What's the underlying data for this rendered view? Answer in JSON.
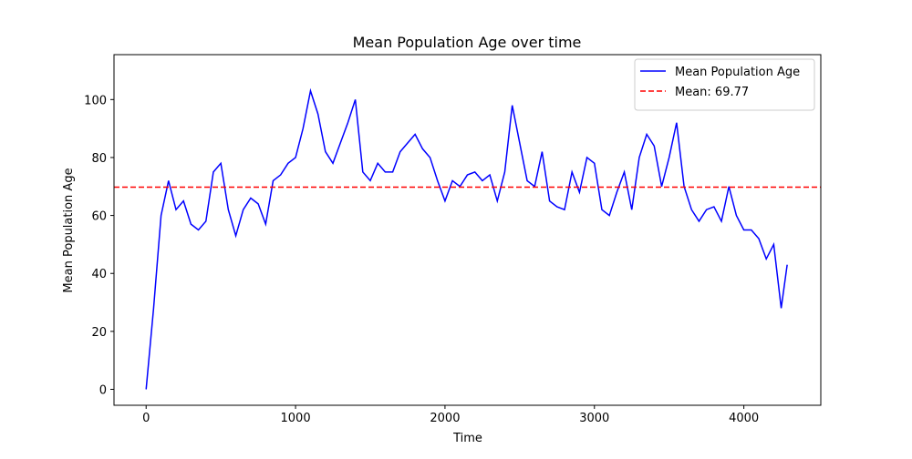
{
  "chart_data": {
    "type": "line",
    "title": "Mean Population Age over time",
    "xlabel": "Time",
    "ylabel": "Mean Population Age",
    "x": [
      0,
      50,
      100,
      150,
      200,
      250,
      300,
      350,
      400,
      450,
      500,
      550,
      600,
      650,
      700,
      750,
      800,
      850,
      900,
      950,
      1000,
      1050,
      1100,
      1150,
      1200,
      1250,
      1300,
      1350,
      1400,
      1450,
      1500,
      1550,
      1600,
      1650,
      1700,
      1750,
      1800,
      1850,
      1900,
      1950,
      2000,
      2050,
      2100,
      2150,
      2200,
      2250,
      2300,
      2350,
      2400,
      2450,
      2500,
      2550,
      2600,
      2650,
      2700,
      2750,
      2800,
      2850,
      2900,
      2950,
      3000,
      3050,
      3100,
      3150,
      3200,
      3250,
      3300,
      3350,
      3400,
      3450,
      3500,
      3550,
      3600,
      3650,
      3700,
      3750,
      3800,
      3850,
      3900,
      3950,
      4000,
      4050,
      4100,
      4150,
      4200,
      4250,
      4290
    ],
    "series": [
      {
        "name": "Mean Population Age",
        "color": "#0000ff",
        "values": [
          0,
          28,
          60,
          72,
          62,
          65,
          57,
          55,
          58,
          75,
          78,
          62,
          53,
          62,
          66,
          64,
          57,
          72,
          74,
          78,
          80,
          90,
          103,
          95,
          82,
          78,
          85,
          92,
          100,
          75,
          72,
          78,
          75,
          75,
          82,
          85,
          88,
          83,
          80,
          72,
          65,
          72,
          70,
          74,
          75,
          72,
          74,
          65,
          75,
          98,
          85,
          72,
          70,
          82,
          65,
          63,
          62,
          75,
          68,
          80,
          78,
          62,
          60,
          68,
          75,
          62,
          80,
          88,
          84,
          70,
          80,
          92,
          70,
          62,
          58,
          62,
          63,
          58,
          70,
          60,
          55,
          55,
          52,
          45,
          50,
          28,
          43
        ]
      }
    ],
    "hlines": [
      {
        "name": "Mean: 69.77",
        "value": 69.77,
        "color": "#ff0000",
        "style": "dashed"
      }
    ],
    "xlim": [
      -215,
      4515
    ],
    "ylim": [
      -5.5,
      115.5
    ],
    "xticks": [
      0,
      1000,
      2000,
      3000,
      4000
    ],
    "yticks": [
      0,
      20,
      40,
      60,
      80,
      100
    ],
    "legend": "upper right"
  }
}
